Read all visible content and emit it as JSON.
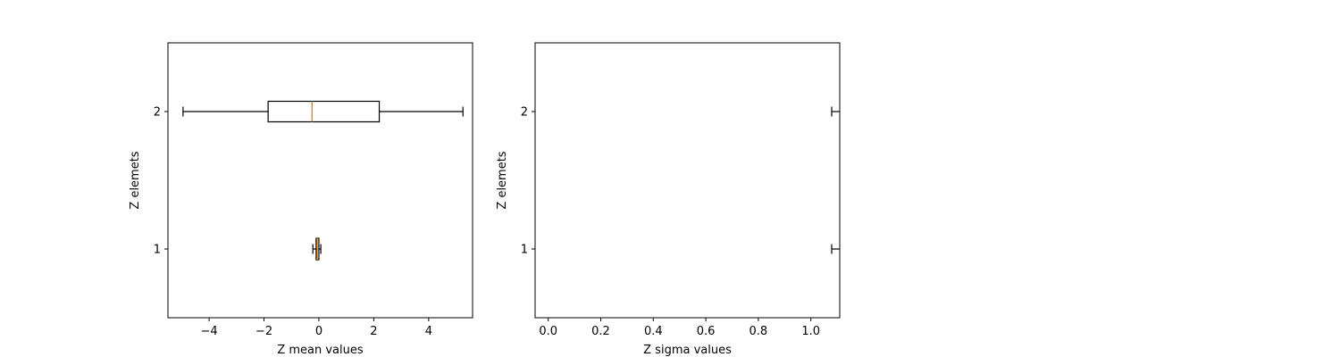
{
  "colors": {
    "axes": "#000000",
    "box": "#000000",
    "median": "#ff7f0e",
    "background": "#ffffff"
  },
  "chart_data": [
    {
      "type": "boxplot",
      "orientation": "horizontal",
      "title": "",
      "xlabel": "Z mean values",
      "ylabel": "Z elemets",
      "xlim": [
        -5.5,
        5.6
      ],
      "ylim": [
        0.5,
        2.5
      ],
      "xticks": [
        -4,
        -2,
        0,
        2,
        4
      ],
      "xtick_labels": [
        "−4",
        "−2",
        "0",
        "2",
        "4"
      ],
      "yticks": [
        1,
        2
      ],
      "ytick_labels": [
        "1",
        "2"
      ],
      "grid": false,
      "boxes": [
        {
          "position": 1,
          "whislo": -0.22,
          "q1": -0.1,
          "med": -0.06,
          "q3": 0.0,
          "whishi": 0.07
        },
        {
          "position": 2,
          "whislo": -4.95,
          "q1": -1.85,
          "med": -0.25,
          "q3": 2.2,
          "whishi": 5.25
        }
      ]
    },
    {
      "type": "boxplot",
      "orientation": "horizontal",
      "title": "",
      "xlabel": "Z sigma values",
      "ylabel": "Z elemets",
      "xlim": [
        -0.05,
        1.11
      ],
      "ylim": [
        0.5,
        2.5
      ],
      "xticks": [
        0.0,
        0.2,
        0.4,
        0.6,
        0.8,
        1.0
      ],
      "xtick_labels": [
        "0.0",
        "0.2",
        "0.4",
        "0.6",
        "0.8",
        "1.0"
      ],
      "yticks": [
        1,
        2
      ],
      "ytick_labels": [
        "1",
        "2"
      ],
      "grid": false,
      "boxes": [
        {
          "position": 1,
          "whislo": 1.11,
          "q1": 1.11,
          "med": 1.11,
          "q3": 1.11,
          "whishi": 1.11,
          "cap_only": true
        },
        {
          "position": 2,
          "whislo": 1.11,
          "q1": 1.11,
          "med": 1.11,
          "q3": 1.11,
          "whishi": 1.11,
          "cap_only": true
        }
      ]
    }
  ]
}
